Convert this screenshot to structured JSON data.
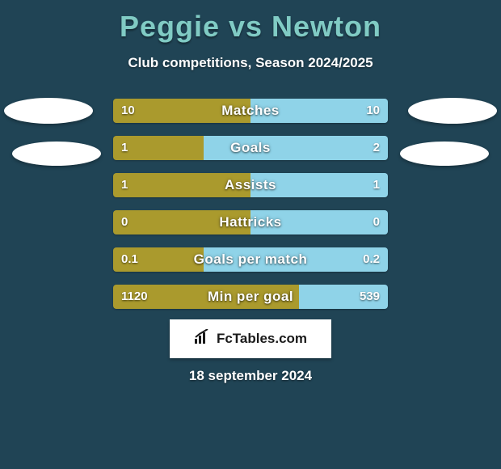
{
  "title": "Peggie vs Newton",
  "subtitle": "Club competitions, Season 2024/2025",
  "date": "18 september 2024",
  "brand": "FcTables.com",
  "colors": {
    "background": "#204455",
    "title": "#80cbc4",
    "left_bar": "#aa9a2d",
    "right_bar": "#8fd3e8",
    "text": "#ffffff"
  },
  "rows": [
    {
      "label": "Matches",
      "left": "10",
      "right": "10",
      "left_pct": 50,
      "right_pct": 50
    },
    {
      "label": "Goals",
      "left": "1",
      "right": "2",
      "left_pct": 33,
      "right_pct": 67
    },
    {
      "label": "Assists",
      "left": "1",
      "right": "1",
      "left_pct": 50,
      "right_pct": 50
    },
    {
      "label": "Hattricks",
      "left": "0",
      "right": "0",
      "left_pct": 50,
      "right_pct": 50
    },
    {
      "label": "Goals per match",
      "left": "0.1",
      "right": "0.2",
      "left_pct": 33,
      "right_pct": 67
    },
    {
      "label": "Min per goal",
      "left": "1120",
      "right": "539",
      "left_pct": 67.5,
      "right_pct": 32.5
    }
  ]
}
